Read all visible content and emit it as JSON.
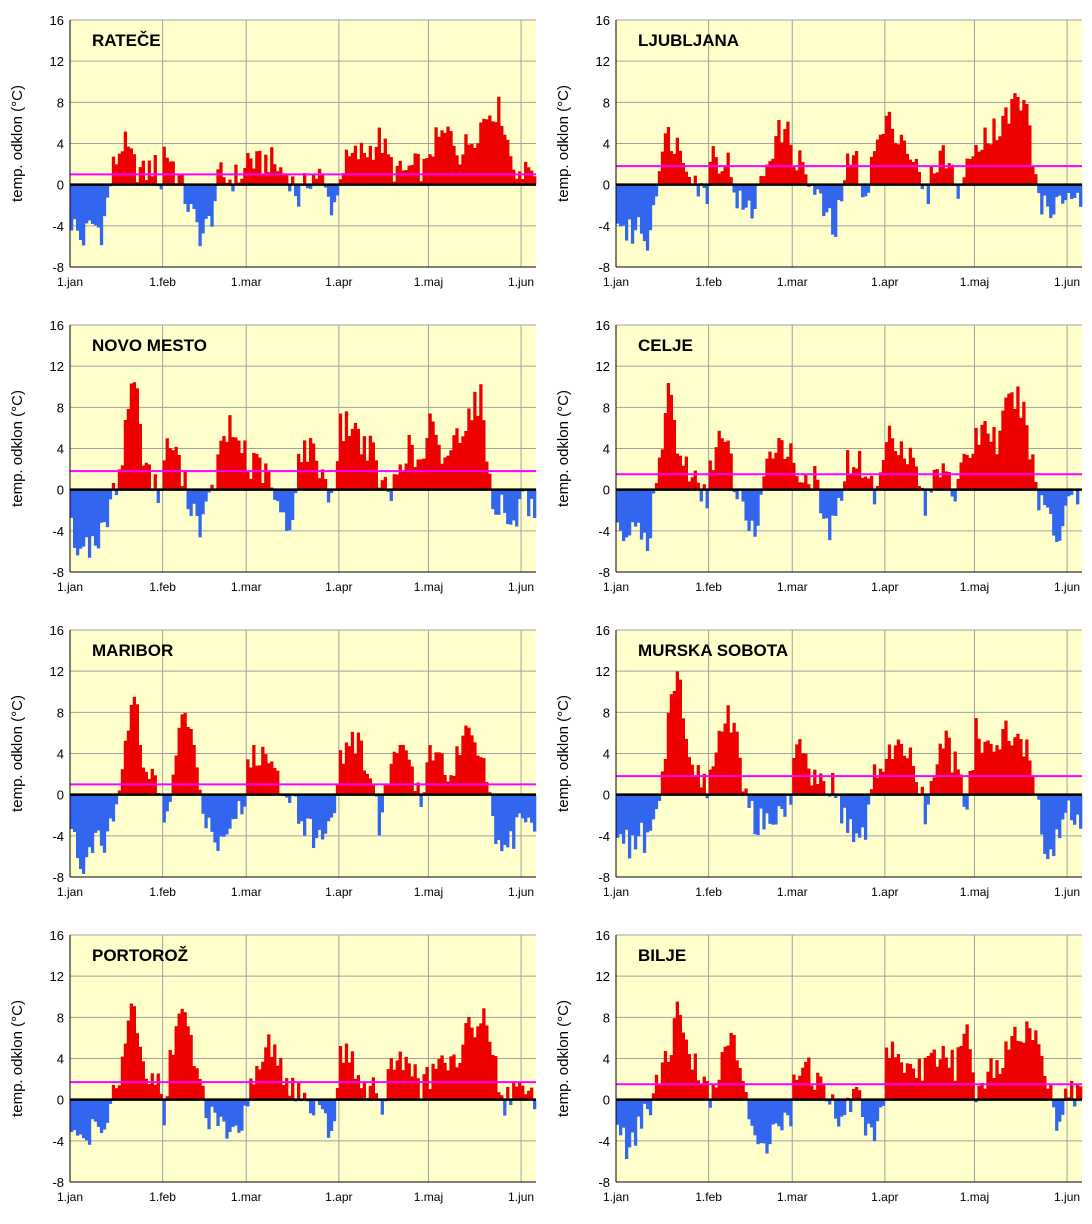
{
  "chart_data": [
    {
      "type": "bar",
      "title": "RATEČE",
      "ylabel": "temp. odklon (°C)",
      "ylim": [
        -8,
        16
      ],
      "yticks": [
        -8,
        -4,
        0,
        4,
        8,
        12,
        16
      ],
      "xticks": [
        "1.jan",
        "1.feb",
        "1.mar",
        "1.apr",
        "1.maj",
        "1.jun"
      ],
      "reference_line": 1.0,
      "monthly_anomaly": [
        [
          -3.5,
          -5.5,
          -3.8,
          -4.5,
          1.5,
          4.2,
          2.0,
          1.0,
          2.0,
          -0.8
        ],
        [
          3.5,
          2.0,
          -0.5,
          -3.0,
          -5.0,
          -3.5,
          1.0,
          0.5,
          0.8,
          1.5
        ],
        [
          2.8,
          1.8,
          2.5,
          1.5,
          1.0,
          -1.5,
          0.8,
          1.0,
          -2.0,
          -1.0
        ],
        [
          1.5,
          2.5,
          3.0,
          3.5,
          4.5,
          2.0,
          1.0,
          1.5,
          1.8,
          1.2
        ],
        [
          3.5,
          4.5,
          5.0,
          3.0,
          4.5,
          6.0,
          7.5,
          7.0,
          2.0,
          1.5
        ]
      ]
    },
    {
      "type": "bar",
      "title": "LJUBLJANA",
      "ylabel": "temp. odklon (°C)",
      "ylim": [
        -8,
        16
      ],
      "yticks": [
        -8,
        -4,
        0,
        4,
        8,
        12,
        16
      ],
      "xticks": [
        "1.jan",
        "1.feb",
        "1.mar",
        "1.apr",
        "1.maj",
        "1.jun"
      ],
      "reference_line": 1.8,
      "monthly_anomaly": [
        [
          -3.0,
          -5.0,
          -4.0,
          -5.5,
          2.0,
          5.0,
          3.5,
          2.0,
          -0.5,
          -1.5
        ],
        [
          3.5,
          2.5,
          2.0,
          -1.5,
          -3.0,
          -1.5,
          2.0,
          4.5,
          5.5,
          3.5
        ],
        [
          3.0,
          1.5,
          -1.0,
          -2.5,
          -5.0,
          1.5,
          2.5,
          -1.0,
          4.0,
          5.5
        ],
        [
          6.0,
          5.5,
          4.0,
          1.5,
          -1.5,
          2.5,
          3.0,
          -0.5,
          1.0,
          3.5
        ],
        [
          4.5,
          5.0,
          5.5,
          6.5,
          8.5,
          7.0,
          -1.0,
          -3.0,
          -1.5,
          -1.0
        ]
      ]
    },
    {
      "type": "bar",
      "title": "NOVO MESTO",
      "ylabel": "temp. odklon (°C)",
      "ylim": [
        -8,
        16
      ],
      "yticks": [
        -8,
        -4,
        0,
        4,
        8,
        12,
        16
      ],
      "xticks": [
        "1.jan",
        "1.feb",
        "1.mar",
        "1.apr",
        "1.maj",
        "1.jun"
      ],
      "reference_line": 1.8,
      "monthly_anomaly": [
        [
          -4.0,
          -6.0,
          -5.0,
          -4.5,
          -1.0,
          4.0,
          12.0,
          3.5,
          0.5,
          -1.0
        ],
        [
          3.5,
          4.5,
          1.0,
          -1.5,
          -3.5,
          -1.0,
          3.5,
          6.0,
          4.5,
          4.0
        ],
        [
          2.0,
          2.5,
          1.0,
          -2.0,
          -4.5,
          3.5,
          4.0,
          2.5,
          -1.0,
          4.5
        ],
        [
          6.0,
          6.5,
          5.0,
          4.0,
          1.0,
          -1.0,
          3.0,
          4.0,
          2.0,
          5.5
        ],
        [
          6.5,
          3.0,
          4.0,
          6.0,
          8.0,
          9.0,
          -1.0,
          -1.5,
          -4.0,
          -1.5
        ]
      ]
    },
    {
      "type": "bar",
      "title": "CELJE",
      "ylabel": "temp. odklon (°C)",
      "ylim": [
        -8,
        16
      ],
      "yticks": [
        -8,
        -4,
        0,
        4,
        8,
        12,
        16
      ],
      "xticks": [
        "1.jan",
        "1.feb",
        "1.mar",
        "1.apr",
        "1.maj",
        "1.jun"
      ],
      "reference_line": 1.5,
      "monthly_anomaly": [
        [
          -3.0,
          -5.0,
          -4.0,
          -5.0,
          1.5,
          10.5,
          3.0,
          2.0,
          -0.5,
          -1.0
        ],
        [
          2.5,
          5.0,
          3.5,
          -1.0,
          -2.5,
          -4.5,
          1.5,
          5.0,
          4.5,
          3.0
        ],
        [
          2.0,
          1.5,
          1.0,
          -3.5,
          -4.0,
          2.5,
          3.0,
          2.0,
          -1.0,
          4.5
        ],
        [
          5.5,
          5.0,
          4.0,
          2.0,
          -2.0,
          2.0,
          3.0,
          -1.0,
          3.5,
          4.5
        ],
        [
          5.0,
          6.5,
          4.5,
          8.0,
          9.0,
          6.0,
          -1.0,
          -1.5,
          -5.0,
          -1.0
        ]
      ]
    },
    {
      "type": "bar",
      "title": "MARIBOR",
      "ylabel": "temp. odklon (°C)",
      "ylim": [
        -8,
        16
      ],
      "yticks": [
        -8,
        -4,
        0,
        4,
        8,
        12,
        16
      ],
      "xticks": [
        "1.jan",
        "1.feb",
        "1.mar",
        "1.apr",
        "1.maj",
        "1.jun"
      ],
      "reference_line": 1.0,
      "monthly_anomaly": [
        [
          -4.0,
          -7.0,
          -5.5,
          -4.5,
          -3.0,
          4.0,
          10.5,
          2.5,
          1.0,
          -1.0
        ],
        [
          -2.0,
          1.0,
          9.0,
          5.0,
          -0.5,
          -3.5,
          -4.5,
          -2.5,
          -1.0,
          -1.5
        ],
        [
          3.0,
          4.0,
          3.5,
          1.5,
          0.5,
          -1.5,
          -3.5,
          -4.5,
          -2.0,
          1.5
        ],
        [
          3.5,
          5.5,
          4.5,
          2.0,
          -3.0,
          3.0,
          5.0,
          2.5,
          -1.0,
          4.5
        ],
        [
          5.5,
          3.0,
          2.0,
          5.5,
          6.5,
          4.5,
          -1.0,
          -7.0,
          -4.0,
          -3.0
        ]
      ]
    },
    {
      "type": "bar",
      "title": "MURSKA SOBOTA",
      "ylabel": "temp. odklon (°C)",
      "ylim": [
        -8,
        16
      ],
      "yticks": [
        -8,
        -4,
        0,
        4,
        8,
        12,
        16
      ],
      "xticks": [
        "1.jan",
        "1.feb",
        "1.mar",
        "1.apr",
        "1.maj",
        "1.jun"
      ],
      "reference_line": 1.8,
      "monthly_anomaly": [
        [
          -3.0,
          -5.0,
          -4.0,
          -4.5,
          -2.0,
          8.0,
          12.0,
          3.0,
          2.0,
          -1.0
        ],
        [
          2.5,
          6.0,
          8.0,
          5.0,
          -1.0,
          -3.0,
          -2.5,
          -1.5,
          -1.0,
          -2.0
        ],
        [
          5.0,
          3.5,
          2.0,
          1.5,
          0.5,
          -2.5,
          -4.0,
          -3.5,
          2.5,
          3.0
        ],
        [
          4.0,
          4.5,
          4.0,
          2.0,
          -2.0,
          3.0,
          5.0,
          2.5,
          -1.0,
          4.0
        ],
        [
          6.0,
          5.0,
          4.0,
          6.5,
          5.0,
          4.5,
          -1.0,
          -7.0,
          -4.0,
          -2.0
        ]
      ]
    },
    {
      "type": "bar",
      "title": "PORTOROŽ",
      "ylabel": "temp. odklon (°C)",
      "ylim": [
        -8,
        16
      ],
      "yticks": [
        -8,
        -4,
        0,
        4,
        8,
        12,
        16
      ],
      "xticks": [
        "1.jan",
        "1.feb",
        "1.mar",
        "1.apr",
        "1.maj",
        "1.jun"
      ],
      "reference_line": 1.7,
      "monthly_anomaly": [
        [
          -2.0,
          -4.0,
          -3.0,
          -2.5,
          1.0,
          3.5,
          9.5,
          3.0,
          2.0,
          1.5
        ],
        [
          -1.0,
          6.0,
          8.5,
          5.0,
          1.0,
          -2.0,
          -3.0,
          -3.5,
          -4.0,
          -1.0
        ],
        [
          0.5,
          3.5,
          5.0,
          4.0,
          1.5,
          0.5,
          -0.5,
          -2.0,
          -3.0,
          2.0
        ],
        [
          4.5,
          4.0,
          2.0,
          1.5,
          -1.0,
          3.0,
          4.5,
          3.0,
          1.0,
          2.5
        ],
        [
          2.0,
          3.0,
          4.0,
          5.0,
          7.0,
          8.5,
          6.0,
          -0.5,
          1.0,
          0.5
        ]
      ]
    },
    {
      "type": "bar",
      "title": "BILJE",
      "ylabel": "temp. odklon (°C)",
      "ylim": [
        -8,
        16
      ],
      "yticks": [
        -8,
        -4,
        0,
        4,
        8,
        12,
        16
      ],
      "xticks": [
        "1.jan",
        "1.feb",
        "1.mar",
        "1.apr",
        "1.maj",
        "1.jun"
      ],
      "reference_line": 1.5,
      "monthly_anomaly": [
        [
          -2.0,
          -5.5,
          -3.0,
          -1.0,
          2.5,
          4.0,
          9.0,
          4.0,
          3.0,
          1.5
        ],
        [
          0.5,
          3.0,
          7.0,
          4.0,
          -1.0,
          -3.0,
          -4.0,
          -3.5,
          -2.5,
          -1.0
        ],
        [
          3.0,
          4.0,
          2.0,
          1.0,
          -1.0,
          -2.0,
          2.0,
          -3.5,
          -2.5,
          1.0
        ],
        [
          4.5,
          5.0,
          3.0,
          2.5,
          3.5,
          4.0,
          5.0,
          2.5,
          8.0,
          2.0
        ],
        [
          1.0,
          2.5,
          3.0,
          5.0,
          6.0,
          7.5,
          6.5,
          1.0,
          -2.5,
          0.5
        ]
      ]
    }
  ],
  "colors": {
    "positive": "#ee0000",
    "negative": "#3366ee",
    "plot_bg": "#ffffcc",
    "grid": "#a0a0a0",
    "reference": "#ff00ff",
    "zero_line": "#000000"
  }
}
